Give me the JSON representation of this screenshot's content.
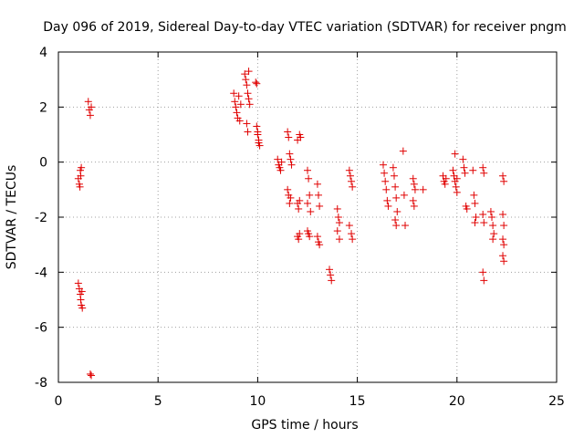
{
  "chart_data": {
    "type": "scatter",
    "title": "Day 096 of 2019, Sidereal Day-to-day VTEC variation (SDTVAR) for receiver pngm",
    "xlabel": "GPS time / hours",
    "ylabel": "SDTVAR / TECUs",
    "xlim": [
      0,
      25
    ],
    "ylim": [
      -8,
      4
    ],
    "x_ticks": [
      0,
      5,
      10,
      15,
      20,
      25
    ],
    "x_tick_labels": [
      "0",
      "5",
      "10",
      "15",
      "20",
      "25"
    ],
    "y_ticks": [
      -8,
      -6,
      -4,
      -2,
      0,
      2,
      4
    ],
    "y_tick_labels": [
      "-8",
      "-6",
      "-4",
      "-2",
      "0",
      "2",
      "4"
    ],
    "grid": true,
    "marker": "+",
    "series_color": "#e00000",
    "series": [
      {
        "name": "SDTVAR",
        "points": [
          [
            1.0,
            -0.6
          ],
          [
            1.05,
            -0.8
          ],
          [
            1.08,
            -0.9
          ],
          [
            1.1,
            -0.3
          ],
          [
            1.12,
            -0.5
          ],
          [
            1.15,
            -0.2
          ],
          [
            1.0,
            -4.4
          ],
          [
            1.05,
            -4.6
          ],
          [
            1.1,
            -4.8
          ],
          [
            1.12,
            -5.0
          ],
          [
            1.15,
            -5.2
          ],
          [
            1.18,
            -4.7
          ],
          [
            1.2,
            -5.3
          ],
          [
            1.5,
            2.2
          ],
          [
            1.55,
            1.9
          ],
          [
            1.6,
            1.7
          ],
          [
            1.65,
            2.0
          ],
          [
            1.6,
            -7.7
          ],
          [
            1.65,
            -7.75
          ],
          [
            8.8,
            2.5
          ],
          [
            8.85,
            2.2
          ],
          [
            8.9,
            2.0
          ],
          [
            8.95,
            1.8
          ],
          [
            9.0,
            1.6
          ],
          [
            9.05,
            2.4
          ],
          [
            9.1,
            1.5
          ],
          [
            9.15,
            2.1
          ],
          [
            9.35,
            3.2
          ],
          [
            9.4,
            3.0
          ],
          [
            9.45,
            2.8
          ],
          [
            9.5,
            2.5
          ],
          [
            9.55,
            2.3
          ],
          [
            9.6,
            2.1
          ],
          [
            9.45,
            1.4
          ],
          [
            9.5,
            1.1
          ],
          [
            9.55,
            3.3
          ],
          [
            9.9,
            2.9
          ],
          [
            9.95,
            2.85
          ],
          [
            9.95,
            1.3
          ],
          [
            10.0,
            1.0
          ],
          [
            10.05,
            0.8
          ],
          [
            10.1,
            0.6
          ],
          [
            10.0,
            1.1
          ],
          [
            10.05,
            0.7
          ],
          [
            11.0,
            0.1
          ],
          [
            11.05,
            -0.1
          ],
          [
            11.1,
            -0.2
          ],
          [
            11.15,
            -0.3
          ],
          [
            11.2,
            0.0
          ],
          [
            11.5,
            -1.0
          ],
          [
            11.55,
            -1.2
          ],
          [
            11.6,
            -1.5
          ],
          [
            11.5,
            1.1
          ],
          [
            11.55,
            0.9
          ],
          [
            11.6,
            0.3
          ],
          [
            11.65,
            0.1
          ],
          [
            11.7,
            -0.1
          ],
          [
            11.65,
            -1.3
          ],
          [
            12.0,
            -1.5
          ],
          [
            12.05,
            -1.7
          ],
          [
            12.1,
            -1.4
          ],
          [
            12.0,
            0.8
          ],
          [
            12.1,
            1.0
          ],
          [
            12.15,
            0.9
          ],
          [
            12.0,
            -2.7
          ],
          [
            12.05,
            -2.8
          ],
          [
            12.1,
            -2.6
          ],
          [
            12.5,
            -2.5
          ],
          [
            12.55,
            -2.6
          ],
          [
            12.6,
            -2.7
          ],
          [
            12.5,
            -0.3
          ],
          [
            12.55,
            -0.6
          ],
          [
            12.6,
            -1.2
          ],
          [
            12.65,
            -1.8
          ],
          [
            12.5,
            -1.5
          ],
          [
            13.0,
            -2.7
          ],
          [
            13.05,
            -2.9
          ],
          [
            13.1,
            -3.0
          ],
          [
            13.0,
            -0.8
          ],
          [
            13.05,
            -1.2
          ],
          [
            13.1,
            -1.6
          ],
          [
            13.6,
            -3.9
          ],
          [
            13.65,
            -4.1
          ],
          [
            13.7,
            -4.3
          ],
          [
            14.0,
            -1.7
          ],
          [
            14.05,
            -2.0
          ],
          [
            14.1,
            -2.2
          ],
          [
            14.0,
            -2.5
          ],
          [
            14.1,
            -2.8
          ],
          [
            14.6,
            -0.3
          ],
          [
            14.65,
            -0.5
          ],
          [
            14.7,
            -0.7
          ],
          [
            14.75,
            -0.9
          ],
          [
            14.6,
            -2.3
          ],
          [
            14.7,
            -2.6
          ],
          [
            14.75,
            -2.8
          ],
          [
            16.3,
            -0.1
          ],
          [
            16.35,
            -0.4
          ],
          [
            16.4,
            -0.7
          ],
          [
            16.45,
            -1.0
          ],
          [
            16.5,
            -1.4
          ],
          [
            16.55,
            -1.6
          ],
          [
            16.8,
            -0.2
          ],
          [
            16.85,
            -0.5
          ],
          [
            16.9,
            -0.9
          ],
          [
            16.95,
            -1.3
          ],
          [
            17.0,
            -1.8
          ],
          [
            16.9,
            -2.1
          ],
          [
            16.95,
            -2.3
          ],
          [
            17.3,
            0.4
          ],
          [
            17.35,
            -1.2
          ],
          [
            17.4,
            -2.3
          ],
          [
            17.8,
            -0.6
          ],
          [
            17.85,
            -0.8
          ],
          [
            17.9,
            -1.0
          ],
          [
            17.8,
            -1.4
          ],
          [
            17.85,
            -1.6
          ],
          [
            18.3,
            -1.0
          ],
          [
            19.3,
            -0.5
          ],
          [
            19.35,
            -0.7
          ],
          [
            19.4,
            -0.8
          ],
          [
            19.45,
            -0.6
          ],
          [
            19.8,
            -0.3
          ],
          [
            19.85,
            -0.5
          ],
          [
            19.9,
            -0.7
          ],
          [
            19.95,
            -0.9
          ],
          [
            20.0,
            -1.1
          ],
          [
            19.9,
            0.3
          ],
          [
            20.0,
            -0.6
          ],
          [
            20.3,
            0.1
          ],
          [
            20.35,
            -0.2
          ],
          [
            20.4,
            -0.4
          ],
          [
            20.45,
            -1.6
          ],
          [
            20.5,
            -1.7
          ],
          [
            20.8,
            -0.3
          ],
          [
            20.85,
            -1.2
          ],
          [
            20.9,
            -1.5
          ],
          [
            20.95,
            -2.0
          ],
          [
            20.9,
            -2.2
          ],
          [
            21.3,
            -0.2
          ],
          [
            21.35,
            -0.4
          ],
          [
            21.3,
            -1.9
          ],
          [
            21.35,
            -2.2
          ],
          [
            21.3,
            -4.0
          ],
          [
            21.35,
            -4.3
          ],
          [
            21.7,
            -1.8
          ],
          [
            21.75,
            -2.0
          ],
          [
            21.8,
            -2.3
          ],
          [
            21.85,
            -2.6
          ],
          [
            21.8,
            -2.8
          ],
          [
            22.3,
            -0.5
          ],
          [
            22.35,
            -0.7
          ],
          [
            22.3,
            -1.9
          ],
          [
            22.35,
            -2.3
          ],
          [
            22.3,
            -2.8
          ],
          [
            22.35,
            -3.0
          ],
          [
            22.3,
            -3.4
          ],
          [
            22.35,
            -3.6
          ]
        ]
      }
    ]
  }
}
